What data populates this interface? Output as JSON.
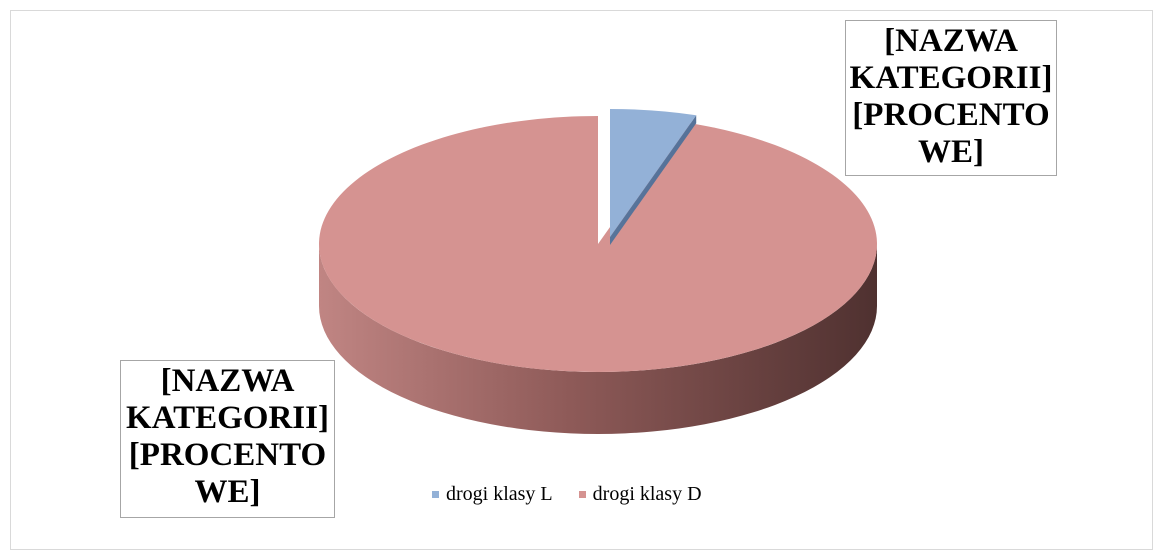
{
  "chart_data": {
    "type": "pie",
    "style": "3d-exploded",
    "categories": [
      "drogi klasy L",
      "drogi klasy D"
    ],
    "values": [
      5,
      95
    ],
    "colors": [
      "#93b1d7",
      "#d59391"
    ],
    "data_labels": [
      [
        "[NAZWA",
        "KATEGORII]",
        "[PROCENTO",
        "WE]"
      ],
      [
        "[NAZWA",
        "KATEGORII]",
        "[PROCENTO",
        "WE]"
      ]
    ],
    "legend": {
      "placement": "bottom",
      "entries": [
        "drogi klasy L",
        "drogi klasy D"
      ]
    }
  }
}
